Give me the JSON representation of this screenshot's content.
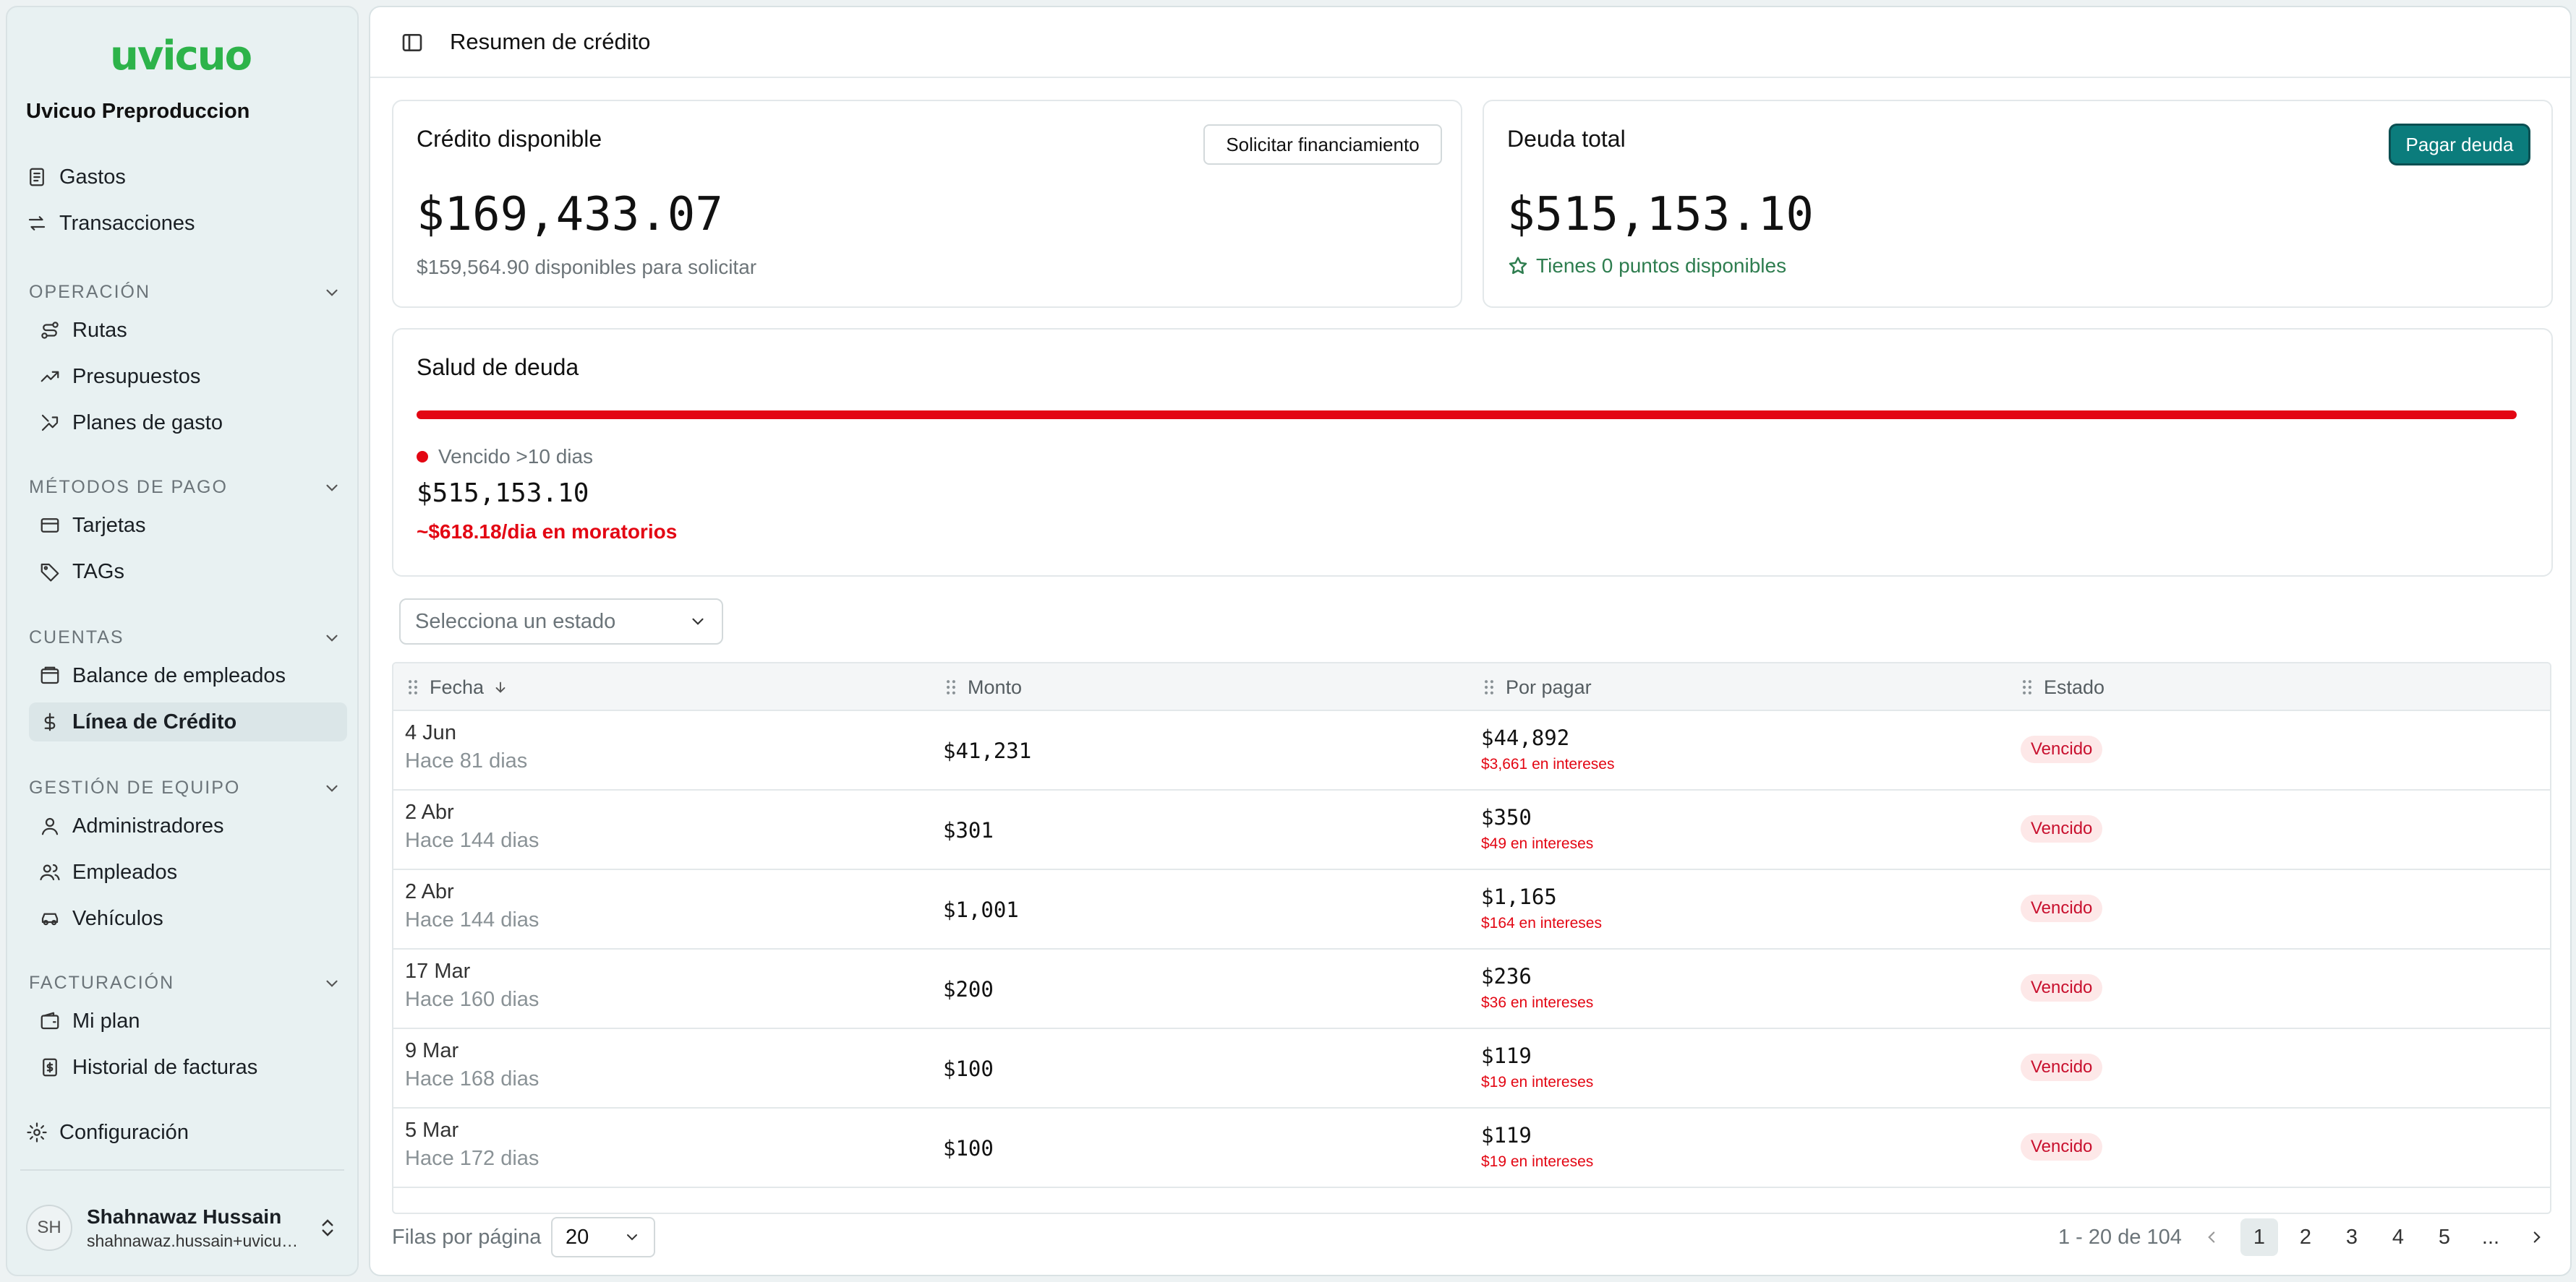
{
  "brand": {
    "logo_text": "uvicuo",
    "org_name": "Uvicuo Preproduccion",
    "accent": "#2db34a"
  },
  "sidebar": {
    "top_items": [
      {
        "label": "Gastos",
        "icon": "receipt-icon"
      },
      {
        "label": "Transacciones",
        "icon": "arrows-exchange-icon"
      }
    ],
    "sections": [
      {
        "title": "OPERACIÓN",
        "items": [
          {
            "label": "Rutas",
            "icon": "route-icon"
          },
          {
            "label": "Presupuestos",
            "icon": "trending-up-icon"
          },
          {
            "label": "Planes de gasto",
            "icon": "split-arrows-icon"
          }
        ]
      },
      {
        "title": "MÉTODOS DE PAGO",
        "items": [
          {
            "label": "Tarjetas",
            "icon": "credit-card-icon"
          },
          {
            "label": "TAGs",
            "icon": "tag-icon"
          }
        ]
      },
      {
        "title": "CUENTAS",
        "items": [
          {
            "label": "Balance de empleados",
            "icon": "wallet-icon"
          },
          {
            "label": "Línea de Crédito",
            "icon": "dollar-icon",
            "active": true
          }
        ]
      },
      {
        "title": "GESTIÓN DE EQUIPO",
        "items": [
          {
            "label": "Administradores",
            "icon": "user-icon"
          },
          {
            "label": "Empleados",
            "icon": "users-icon"
          },
          {
            "label": "Vehículos",
            "icon": "car-icon"
          }
        ]
      },
      {
        "title": "FACTURACIÓN",
        "items": [
          {
            "label": "Mi plan",
            "icon": "wallet-card-icon"
          },
          {
            "label": "Historial de facturas",
            "icon": "invoice-icon"
          }
        ]
      }
    ],
    "settings_label": "Configuración",
    "user": {
      "initials": "SH",
      "name": "Shahnawaz Hussain",
      "email": "shahnawaz.hussain+uvicuo@uvicuo.com"
    }
  },
  "header": {
    "title": "Resumen de crédito"
  },
  "credit_card": {
    "title": "Crédito disponible",
    "button": "Solicitar financiamiento",
    "amount": "$169,433.07",
    "sub": "$159,564.90 disponibles para solicitar"
  },
  "debt_card": {
    "title": "Deuda total",
    "button": "Pagar deuda",
    "amount": "$515,153.10",
    "points": "Tienes 0 puntos disponibles"
  },
  "health": {
    "title": "Salud de deuda",
    "status_label": "Vencido >10 dias",
    "amount": "$515,153.10",
    "daily": "~$618.18/dia en moratorios",
    "overdue_fraction": 1.0,
    "status_color": "#e30613"
  },
  "filter": {
    "placeholder": "Selecciona un estado"
  },
  "table": {
    "columns": [
      "Fecha",
      "Monto",
      "Por pagar",
      "Estado"
    ],
    "rows": [
      {
        "date": "4 Jun",
        "ago": "Hace 81 dias",
        "amount": "$41,231",
        "due": "$44,892",
        "interest": "$3,661 en intereses",
        "status": "Vencido"
      },
      {
        "date": "2 Abr",
        "ago": "Hace 144 dias",
        "amount": "$301",
        "due": "$350",
        "interest": "$49 en intereses",
        "status": "Vencido"
      },
      {
        "date": "2 Abr",
        "ago": "Hace 144 dias",
        "amount": "$1,001",
        "due": "$1,165",
        "interest": "$164 en intereses",
        "status": "Vencido"
      },
      {
        "date": "17 Mar",
        "ago": "Hace 160 dias",
        "amount": "$200",
        "due": "$236",
        "interest": "$36 en intereses",
        "status": "Vencido"
      },
      {
        "date": "9 Mar",
        "ago": "Hace 168 dias",
        "amount": "$100",
        "due": "$119",
        "interest": "$19 en intereses",
        "status": "Vencido"
      },
      {
        "date": "5 Mar",
        "ago": "Hace 172 dias",
        "amount": "$100",
        "due": "$119",
        "interest": "$19 en intereses",
        "status": "Vencido"
      }
    ]
  },
  "pagination": {
    "rows_label": "Filas por página",
    "rows_value": "20",
    "range": "1 - 20 de 104",
    "pages": [
      "1",
      "2",
      "3",
      "4",
      "5",
      "..."
    ],
    "current": "1"
  }
}
